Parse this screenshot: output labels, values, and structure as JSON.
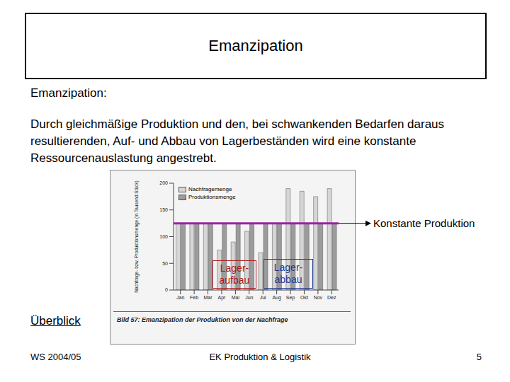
{
  "header": {
    "title": "Emanzipation"
  },
  "body": {
    "heading": "Emanzipation:",
    "text": "Durch gleichmäßige Produktion und den, bei schwankenden Bedarfen daraus resultierenden, Auf- und Abbau von Lagerbeständen wird eine konstante Ressourcenauslastung angestrebt."
  },
  "chart_data": {
    "type": "bar",
    "title": "Bild 57: Emanzipation der Produktion von der Nachfrage",
    "y_label": "Nachfrage- bzw. Produktionsmenge (in Tausend Stück)",
    "categories": [
      "Jan",
      "Feb",
      "Mar",
      "Apr",
      "Mai",
      "Jun",
      "Jul",
      "Aug",
      "Sep",
      "Okt",
      "Nov",
      "Dez"
    ],
    "series": [
      {
        "name": "Nachfragemenge",
        "color": "#d6d6d6",
        "values": [
          125,
          125,
          125,
          75,
          90,
          110,
          70,
          125,
          190,
          185,
          175,
          190
        ]
      },
      {
        "name": "Produktionsmenge",
        "color": "#9c9c9c",
        "values": [
          125,
          125,
          125,
          125,
          125,
          125,
          125,
          125,
          125,
          125,
          125,
          125
        ]
      }
    ],
    "ylim": [
      0,
      200
    ],
    "yticks": [
      0,
      50,
      100,
      150,
      200
    ],
    "legend": "upper left",
    "grid": false
  },
  "annotations": {
    "constant_production": {
      "label": "Konstante Produktion",
      "value": 125,
      "color": "#a020a0"
    },
    "boxes": [
      {
        "label": [
          "Lager-",
          "aufbau"
        ],
        "color": "#b01818"
      },
      {
        "label": [
          "Lager-",
          "abbau"
        ],
        "color": "#1f3a93"
      }
    ]
  },
  "footer": {
    "link": "Überblick",
    "left": "WS 2004/05",
    "center": "EK Produktion & Logistik",
    "page": "5"
  }
}
